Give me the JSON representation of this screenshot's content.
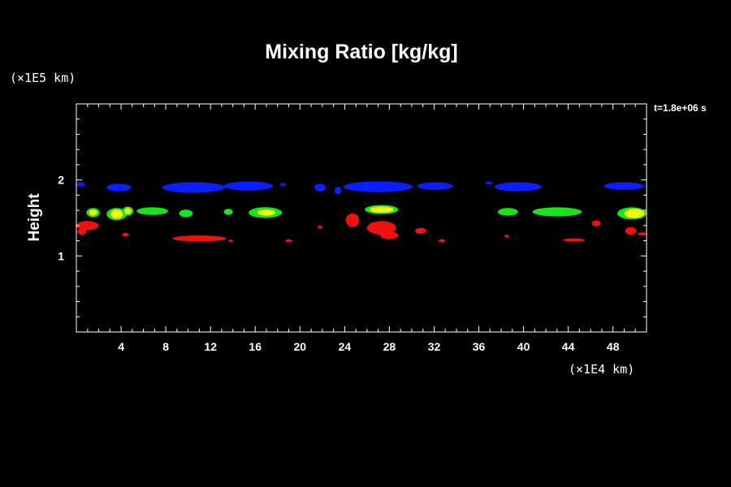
{
  "chart_data": {
    "type": "heatmap",
    "title": "Mixing Ratio [kg/kg]",
    "ylabel": "Height",
    "x_unit_label": "(×1E4 km)",
    "y_unit_label": "(×1E5 km)",
    "time_label": "t=1.8e+06 s",
    "xlim": [
      0,
      51
    ],
    "ylim": [
      0,
      3
    ],
    "x_ticks": [
      4,
      8,
      12,
      16,
      20,
      24,
      28,
      32,
      36,
      40,
      44,
      48
    ],
    "x_tick_labels": [
      "4",
      "8",
      "12",
      "16",
      "20",
      "24",
      "28",
      "32",
      "36",
      "40",
      "44",
      "48"
    ],
    "y_ticks": [
      1,
      2
    ],
    "y_tick_labels": [
      "1",
      "2"
    ],
    "x_minor_step": 1,
    "y_minor_step": 0.2,
    "grid": false,
    "background_color": "#000000",
    "frame_color": "#ffffff",
    "colors": {
      "blue": "#0a1eff",
      "green": "#16e51a",
      "yellow": "#f7f711",
      "red": "#f01010"
    },
    "regions": [
      {
        "color": "blue",
        "cx": 0.4,
        "cy": 1.94,
        "rx": 0.4,
        "ry": 0.03
      },
      {
        "color": "blue",
        "cx": 3.8,
        "cy": 1.9,
        "rx": 1.1,
        "ry": 0.05
      },
      {
        "color": "blue",
        "cx": 10.5,
        "cy": 1.9,
        "rx": 2.8,
        "ry": 0.07
      },
      {
        "color": "blue",
        "cx": 15.4,
        "cy": 1.92,
        "rx": 2.2,
        "ry": 0.06
      },
      {
        "color": "blue",
        "cx": 18.5,
        "cy": 1.94,
        "rx": 0.3,
        "ry": 0.02
      },
      {
        "color": "blue",
        "cx": 21.8,
        "cy": 1.9,
        "rx": 0.5,
        "ry": 0.05
      },
      {
        "color": "blue",
        "cx": 23.4,
        "cy": 1.86,
        "rx": 0.3,
        "ry": 0.05
      },
      {
        "color": "blue",
        "cx": 27.0,
        "cy": 1.91,
        "rx": 3.1,
        "ry": 0.07
      },
      {
        "color": "blue",
        "cx": 32.1,
        "cy": 1.92,
        "rx": 1.6,
        "ry": 0.05
      },
      {
        "color": "blue",
        "cx": 36.9,
        "cy": 1.96,
        "rx": 0.3,
        "ry": 0.02
      },
      {
        "color": "blue",
        "cx": 39.5,
        "cy": 1.91,
        "rx": 2.1,
        "ry": 0.06
      },
      {
        "color": "blue",
        "cx": 49.0,
        "cy": 1.92,
        "rx": 1.8,
        "ry": 0.05
      },
      {
        "color": "green",
        "cx": 1.5,
        "cy": 1.57,
        "rx": 0.6,
        "ry": 0.06
      },
      {
        "color": "yellow",
        "cx": 1.5,
        "cy": 1.57,
        "rx": 0.35,
        "ry": 0.04
      },
      {
        "color": "green",
        "cx": 3.6,
        "cy": 1.55,
        "rx": 0.9,
        "ry": 0.08
      },
      {
        "color": "yellow",
        "cx": 3.6,
        "cy": 1.55,
        "rx": 0.55,
        "ry": 0.06
      },
      {
        "color": "green",
        "cx": 4.6,
        "cy": 1.59,
        "rx": 0.5,
        "ry": 0.06
      },
      {
        "color": "yellow",
        "cx": 4.6,
        "cy": 1.59,
        "rx": 0.3,
        "ry": 0.04
      },
      {
        "color": "green",
        "cx": 6.8,
        "cy": 1.59,
        "rx": 1.4,
        "ry": 0.05
      },
      {
        "color": "green",
        "cx": 9.8,
        "cy": 1.56,
        "rx": 0.6,
        "ry": 0.05
      },
      {
        "color": "green",
        "cx": 13.6,
        "cy": 1.58,
        "rx": 0.4,
        "ry": 0.04
      },
      {
        "color": "green",
        "cx": 16.9,
        "cy": 1.57,
        "rx": 1.5,
        "ry": 0.07
      },
      {
        "color": "yellow",
        "cx": 17.0,
        "cy": 1.57,
        "rx": 0.8,
        "ry": 0.04
      },
      {
        "color": "green",
        "cx": 27.3,
        "cy": 1.61,
        "rx": 1.5,
        "ry": 0.06
      },
      {
        "color": "yellow",
        "cx": 27.3,
        "cy": 1.61,
        "rx": 1.1,
        "ry": 0.04
      },
      {
        "color": "green",
        "cx": 38.6,
        "cy": 1.58,
        "rx": 0.9,
        "ry": 0.05
      },
      {
        "color": "green",
        "cx": 43.0,
        "cy": 1.58,
        "rx": 2.2,
        "ry": 0.06
      },
      {
        "color": "green",
        "cx": 49.7,
        "cy": 1.56,
        "rx": 1.3,
        "ry": 0.08
      },
      {
        "color": "yellow",
        "cx": 49.9,
        "cy": 1.56,
        "rx": 0.9,
        "ry": 0.06
      },
      {
        "color": "red",
        "cx": 1.0,
        "cy": 1.4,
        "rx": 1.0,
        "ry": 0.06
      },
      {
        "color": "red",
        "cx": 0.5,
        "cy": 1.32,
        "rx": 0.4,
        "ry": 0.04
      },
      {
        "color": "red",
        "cx": 4.4,
        "cy": 1.28,
        "rx": 0.3,
        "ry": 0.025
      },
      {
        "color": "red",
        "cx": 11.0,
        "cy": 1.23,
        "rx": 2.4,
        "ry": 0.04
      },
      {
        "color": "red",
        "cx": 13.8,
        "cy": 1.2,
        "rx": 0.2,
        "ry": 0.015
      },
      {
        "color": "red",
        "cx": 19.0,
        "cy": 1.2,
        "rx": 0.3,
        "ry": 0.02
      },
      {
        "color": "red",
        "cx": 21.8,
        "cy": 1.38,
        "rx": 0.2,
        "ry": 0.02
      },
      {
        "color": "red",
        "cx": 24.7,
        "cy": 1.47,
        "rx": 0.6,
        "ry": 0.09
      },
      {
        "color": "red",
        "cx": 27.3,
        "cy": 1.37,
        "rx": 1.3,
        "ry": 0.09
      },
      {
        "color": "red",
        "cx": 28.0,
        "cy": 1.27,
        "rx": 0.8,
        "ry": 0.05
      },
      {
        "color": "red",
        "cx": 30.8,
        "cy": 1.33,
        "rx": 0.5,
        "ry": 0.04
      },
      {
        "color": "red",
        "cx": 32.7,
        "cy": 1.2,
        "rx": 0.3,
        "ry": 0.02
      },
      {
        "color": "red",
        "cx": 38.5,
        "cy": 1.26,
        "rx": 0.2,
        "ry": 0.02
      },
      {
        "color": "red",
        "cx": 44.5,
        "cy": 1.21,
        "rx": 1.0,
        "ry": 0.02
      },
      {
        "color": "red",
        "cx": 46.5,
        "cy": 1.43,
        "rx": 0.4,
        "ry": 0.04
      },
      {
        "color": "red",
        "cx": 49.6,
        "cy": 1.33,
        "rx": 0.5,
        "ry": 0.05
      },
      {
        "color": "red",
        "cx": 50.6,
        "cy": 1.29,
        "rx": 0.4,
        "ry": 0.02
      }
    ]
  }
}
